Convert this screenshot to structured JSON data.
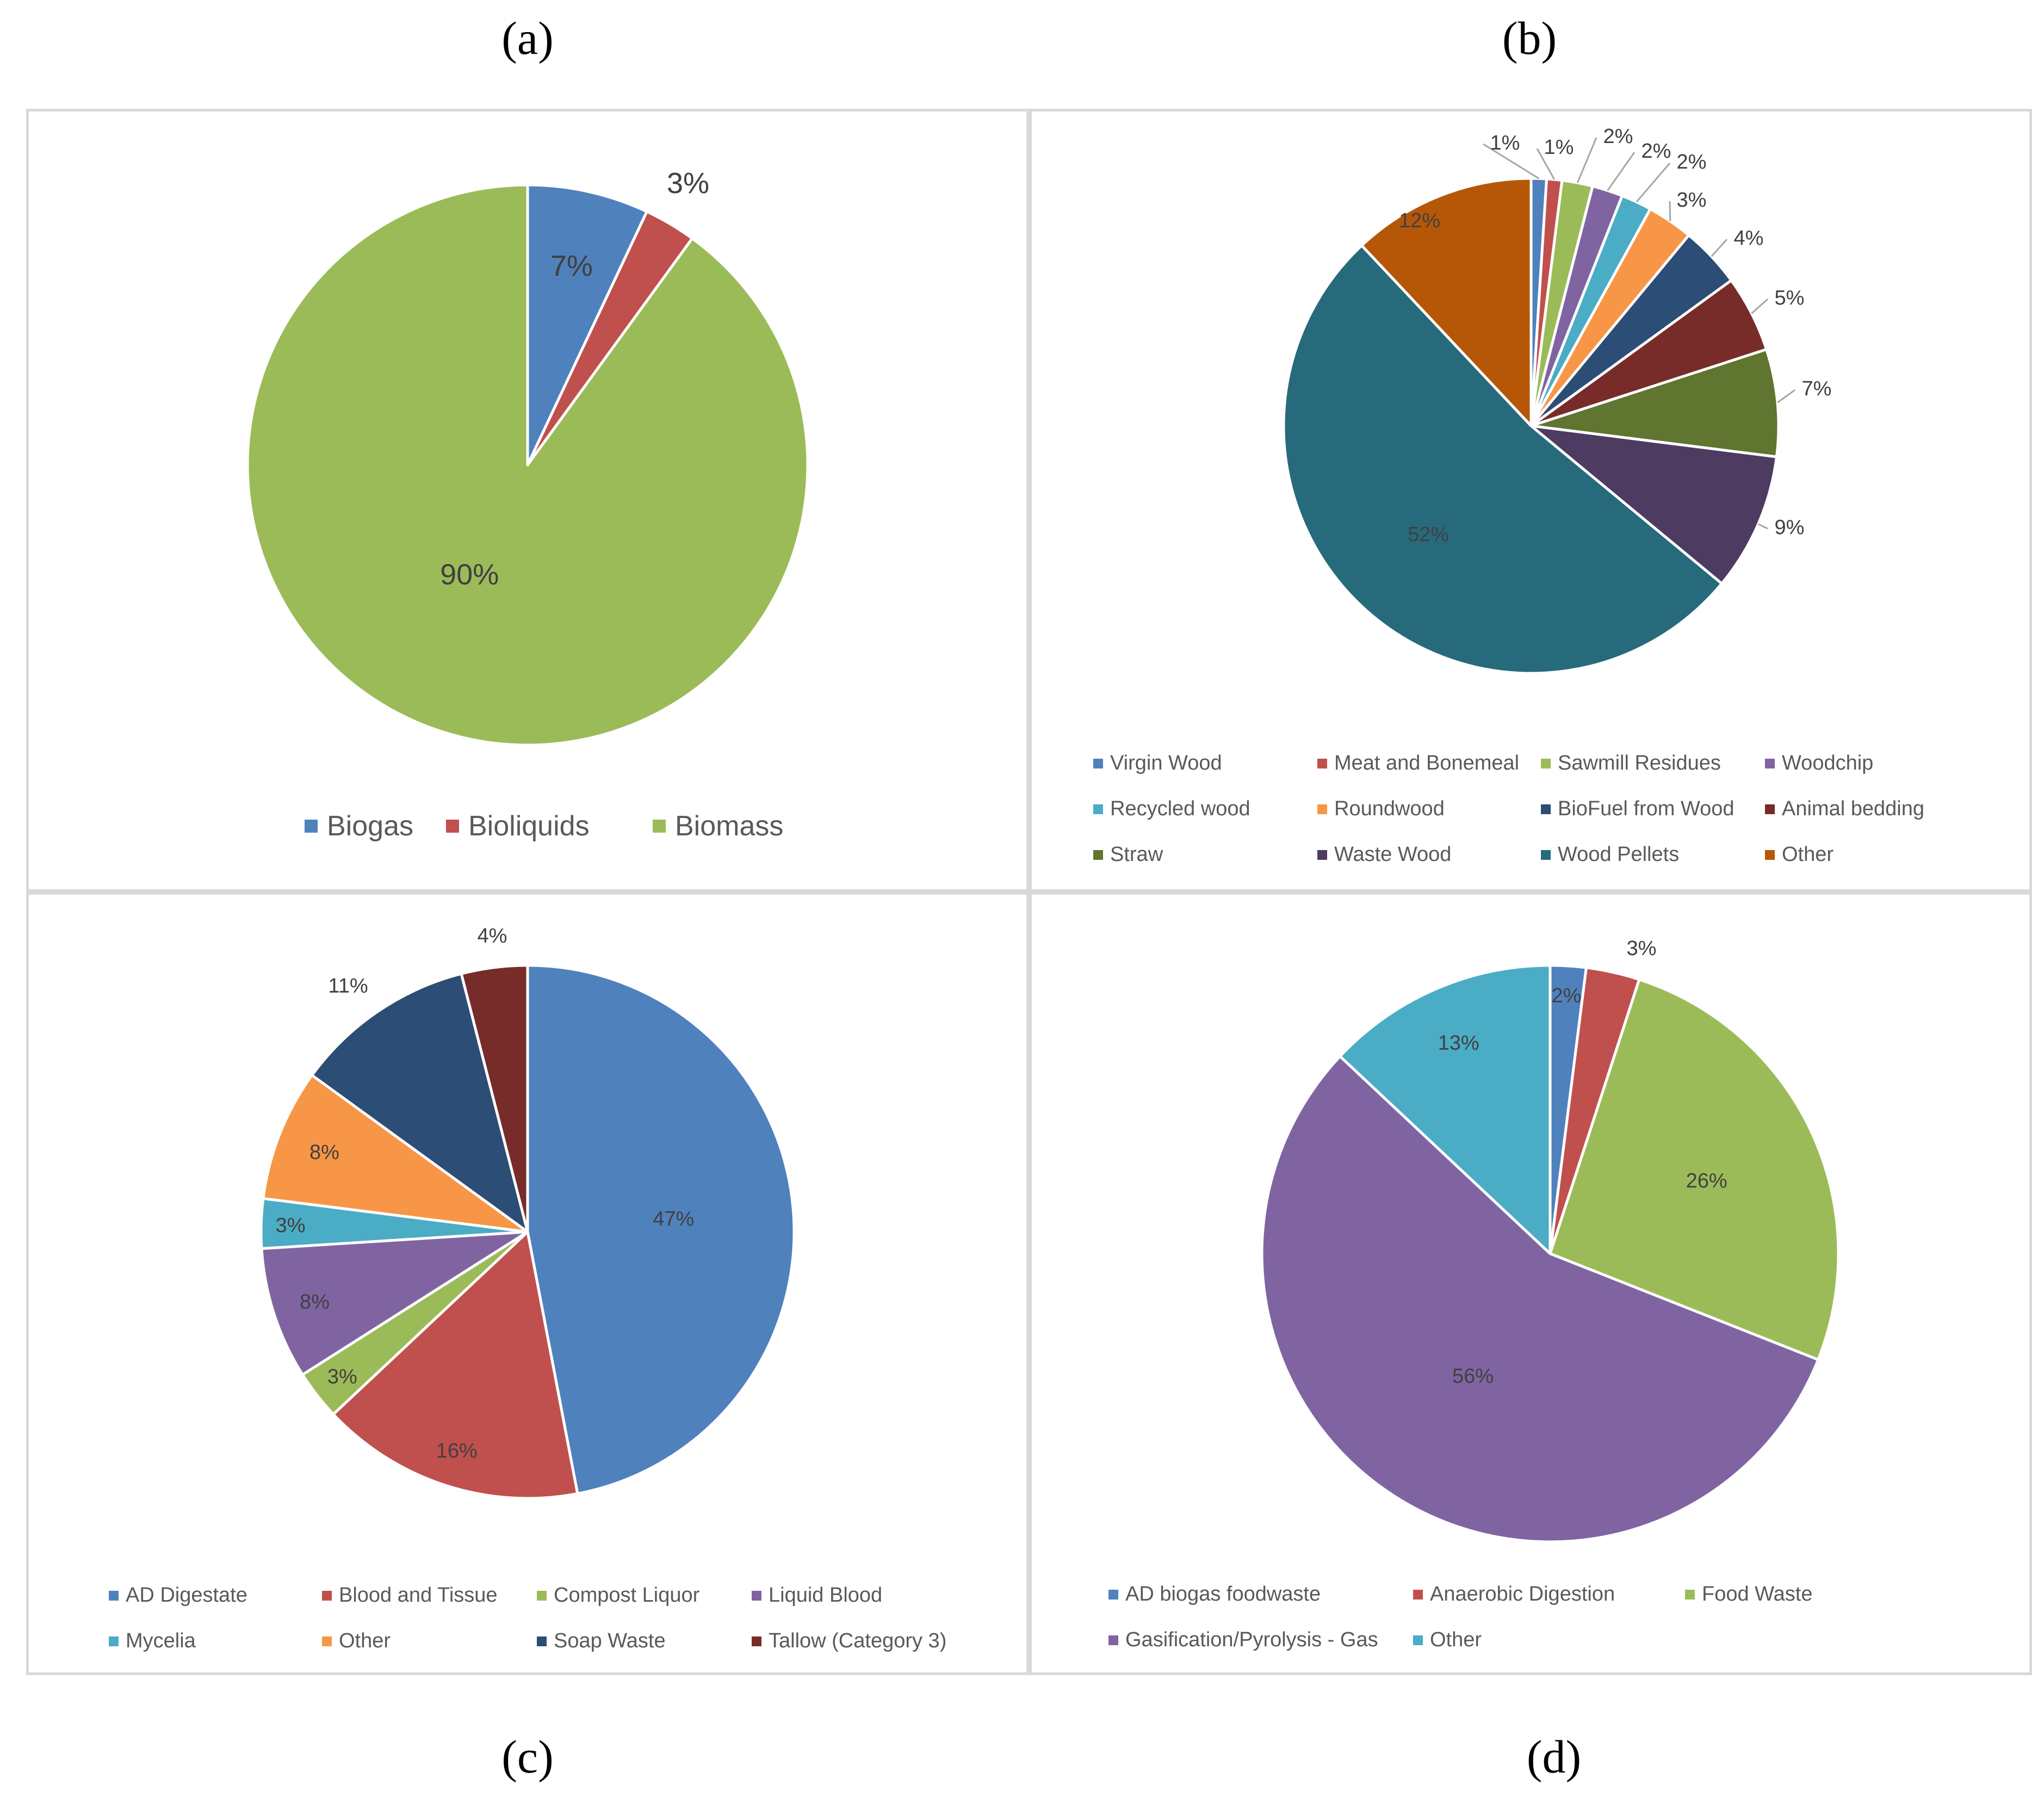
{
  "chart_data": [
    {
      "type": "pie",
      "panel_label": "(a)",
      "categories": [
        "Biogas",
        "Bioliquids",
        "Biomass"
      ],
      "values": [
        7,
        3,
        90
      ],
      "data_labels": [
        "7%",
        "3%",
        "90%"
      ],
      "colors": [
        "#4f81bd",
        "#c0504d",
        "#9bbb59"
      ],
      "legend_position": "bottom"
    },
    {
      "type": "pie",
      "panel_label": "(b)",
      "categories": [
        "Virgin Wood",
        "Meat and Bonemeal",
        "Sawmill Residues",
        "Woodchip",
        "Recycled wood",
        "Roundwood",
        "BioFuel from Wood",
        "Animal bedding",
        "Straw",
        "Waste Wood",
        "Wood Pellets",
        "Other"
      ],
      "values": [
        1,
        1,
        2,
        2,
        2,
        3,
        4,
        5,
        7,
        9,
        52,
        12
      ],
      "data_labels": [
        "1%",
        "1%",
        "2%",
        "2%",
        "2%",
        "3%",
        "4%",
        "5%",
        "7%",
        "9%",
        "52%",
        "12%"
      ],
      "colors": [
        "#4f81bd",
        "#c0504d",
        "#9bbb59",
        "#8064a2",
        "#4bacc6",
        "#f79646",
        "#2c4d75",
        "#772c2a",
        "#5f7530",
        "#4d3b62",
        "#276a7c",
        "#b65708"
      ],
      "legend_position": "bottom"
    },
    {
      "type": "pie",
      "panel_label": "(c)",
      "categories": [
        "AD Digestate",
        "Blood and Tissue",
        "Compost Liquor",
        "Liquid Blood",
        "Mycelia",
        "Other",
        "Soap Waste",
        "Tallow (Category 3)"
      ],
      "values": [
        47,
        16,
        3,
        8,
        3,
        8,
        11,
        4
      ],
      "data_labels": [
        "47%",
        "16%",
        "3%",
        "8%",
        "3%",
        "8%",
        "11%",
        "4%"
      ],
      "colors": [
        "#4f81bd",
        "#c0504d",
        "#9bbb59",
        "#8064a2",
        "#4bacc6",
        "#f79646",
        "#2c4d75",
        "#772c2a"
      ],
      "legend_position": "bottom"
    },
    {
      "type": "pie",
      "panel_label": "(d)",
      "categories": [
        "AD biogas foodwaste",
        "Anaerobic Digestion",
        "Food Waste",
        "Gasification/Pyrolysis - Gas",
        "Other"
      ],
      "values": [
        2,
        3,
        26,
        56,
        13
      ],
      "data_labels": [
        "2%",
        "3%",
        "26%",
        "56%",
        "13%"
      ],
      "colors": [
        "#4f81bd",
        "#c0504d",
        "#9bbb59",
        "#8064a2",
        "#4bacc6"
      ],
      "legend_position": "bottom"
    }
  ]
}
